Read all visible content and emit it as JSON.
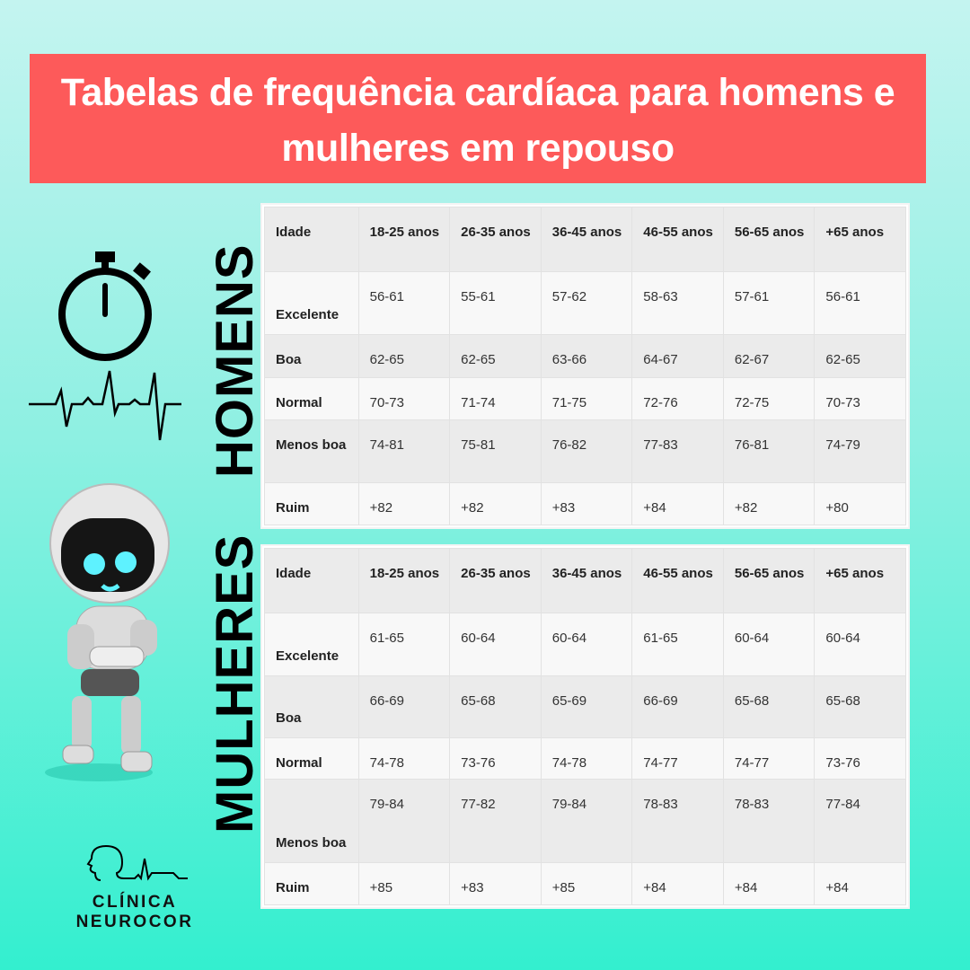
{
  "title": "Tabelas de frequência cardíaca para homens e mulheres em repouso",
  "side_labels": {
    "men": "HOMENS",
    "women": "MULHERES"
  },
  "logo": {
    "text": "CLÍNICA NEUROCOR"
  },
  "icons": [
    "stopwatch-icon",
    "heartbeat-line-icon",
    "robot-illustration",
    "head-heartbeat-logo-icon"
  ],
  "colors": {
    "banner": "#fd5a5a",
    "background_top": "#c4f4f0",
    "background_bottom": "#33efcf"
  },
  "tables": {
    "men": {
      "header": [
        "Idade",
        "18-25 anos",
        "26-35 anos",
        "36-45 anos",
        "46-55 anos",
        "56-65 anos",
        "+65 anos"
      ],
      "rows": [
        [
          "Excelente",
          "56-61",
          "55-61",
          "57-62",
          "58-63",
          "57-61",
          "56-61"
        ],
        [
          "Boa",
          "62-65",
          "62-65",
          "63-66",
          "64-67",
          "62-67",
          "62-65"
        ],
        [
          "Normal",
          "70-73",
          "71-74",
          "71-75",
          "72-76",
          "72-75",
          "70-73"
        ],
        [
          "Menos boa",
          "74-81",
          "75-81",
          "76-82",
          "77-83",
          "76-81",
          "74-79"
        ],
        [
          "Ruim",
          "+82",
          "+82",
          "+83",
          "+84",
          "+82",
          "+80"
        ]
      ]
    },
    "women": {
      "header": [
        "Idade",
        "18-25 anos",
        "26-35 anos",
        "36-45 anos",
        "46-55 anos",
        "56-65 anos",
        "+65 anos"
      ],
      "rows": [
        [
          "Excelente",
          "61-65",
          "60-64",
          "60-64",
          "61-65",
          "60-64",
          "60-64"
        ],
        [
          "Boa",
          "66-69",
          "65-68",
          "65-69",
          "66-69",
          "65-68",
          "65-68"
        ],
        [
          "Normal",
          "74-78",
          "73-76",
          "74-78",
          "74-77",
          "74-77",
          "73-76"
        ],
        [
          "Menos boa",
          "79-84",
          "77-82",
          "79-84",
          "78-83",
          "78-83",
          "77-84"
        ],
        [
          "Ruim",
          "+85",
          "+83",
          "+85",
          "+84",
          "+84",
          "+84"
        ]
      ]
    }
  }
}
